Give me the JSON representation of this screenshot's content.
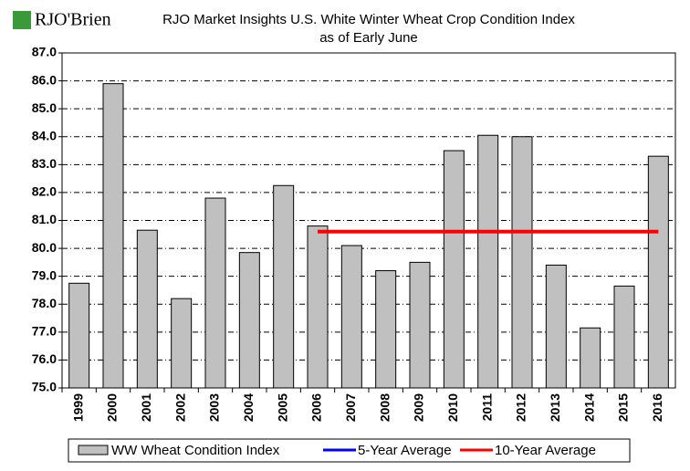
{
  "chart_data": {
    "type": "bar",
    "logo": "RJO'Brien",
    "title": "RJO Market Insights U.S. White Winter Wheat Crop Condition Index",
    "subtitle": "as of Early June",
    "categories": [
      "1999",
      "2000",
      "2001",
      "2002",
      "2003",
      "2004",
      "2005",
      "2006",
      "2007",
      "2008",
      "2009",
      "2010",
      "2011",
      "2012",
      "2013",
      "2014",
      "2015",
      "2016"
    ],
    "series": [
      {
        "name": "WW Wheat Condition Index",
        "type": "bar",
        "color": "#c0c0c0",
        "values": [
          78.75,
          85.9,
          80.65,
          78.2,
          81.8,
          79.85,
          82.25,
          80.8,
          80.1,
          79.2,
          79.5,
          83.5,
          84.05,
          84.0,
          79.4,
          77.15,
          78.65,
          83.3
        ]
      },
      {
        "name": "5-Year Average",
        "type": "line",
        "color": "#0000ff",
        "values": [
          null,
          null,
          null,
          null,
          null,
          null,
          null,
          null,
          null,
          null,
          null,
          null,
          null,
          null,
          null,
          null,
          null,
          null
        ]
      },
      {
        "name": "10-Year Average",
        "type": "line",
        "color": "#ff0000",
        "values": [
          null,
          null,
          null,
          null,
          null,
          null,
          null,
          80.6,
          80.6,
          80.6,
          80.6,
          80.6,
          80.6,
          80.6,
          80.6,
          80.6,
          80.6,
          80.6
        ]
      }
    ],
    "ylim": [
      75,
      87
    ],
    "yticks": [
      {
        "value": 75,
        "label": "75.0"
      },
      {
        "value": 76,
        "label": "76.0"
      },
      {
        "value": 77,
        "label": "77.0"
      },
      {
        "value": 78,
        "label": "78.0"
      },
      {
        "value": 79,
        "label": "79.0"
      },
      {
        "value": 80,
        "label": "80.0"
      },
      {
        "value": 81,
        "label": "81.0"
      },
      {
        "value": 82,
        "label": "82.0"
      },
      {
        "value": 83,
        "label": "83.0"
      },
      {
        "value": 84,
        "label": "84.0"
      },
      {
        "value": 85,
        "label": "85.0"
      },
      {
        "value": 86,
        "label": "86.0"
      },
      {
        "value": 87,
        "label": "87.0"
      }
    ],
    "grid": true,
    "legend": "bottom"
  }
}
